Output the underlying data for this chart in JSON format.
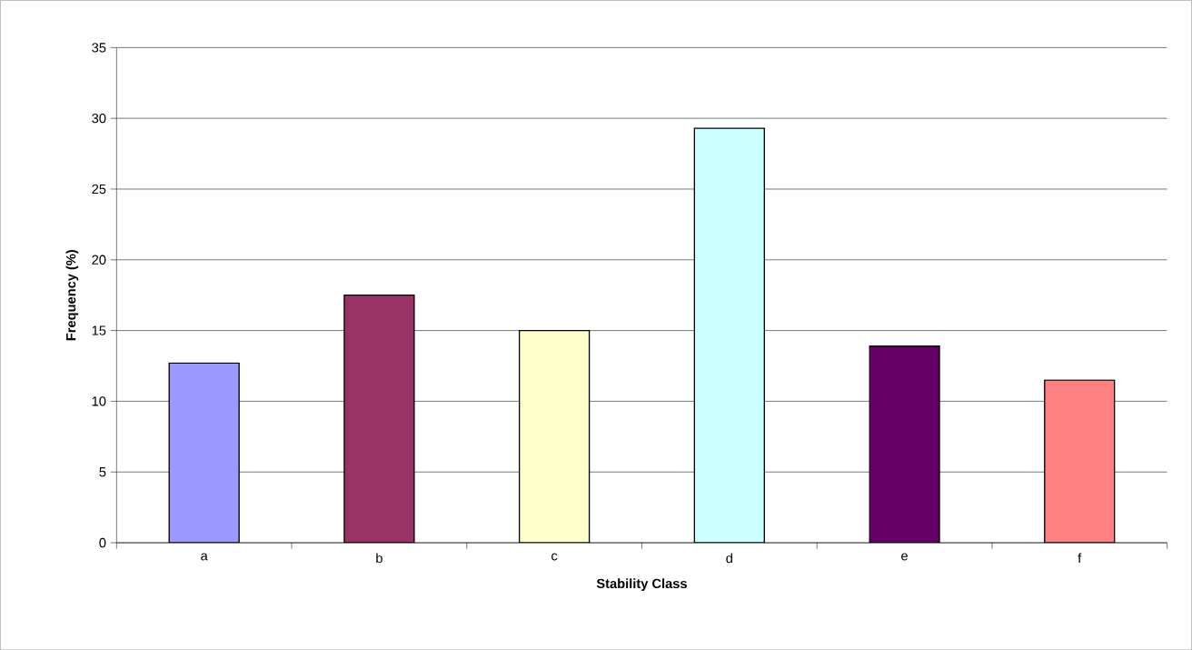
{
  "chart_data": {
    "type": "bar",
    "xlabel": "Stability Class",
    "ylabel": "Frequency (%)",
    "categories": [
      "a",
      "b",
      "c",
      "d",
      "e",
      "f"
    ],
    "values": [
      12.7,
      17.5,
      15.0,
      29.3,
      13.9,
      11.5
    ],
    "colors": [
      "#9999ff",
      "#993366",
      "#ffffcc",
      "#ccffff",
      "#660066",
      "#ff8080"
    ],
    "ylim": [
      0,
      35
    ],
    "yticks": [
      0,
      5,
      10,
      15,
      20,
      25,
      30,
      35
    ],
    "grid": "y"
  }
}
